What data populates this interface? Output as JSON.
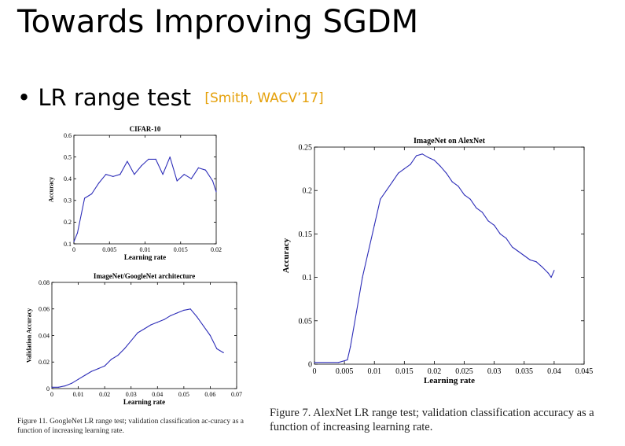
{
  "slide": {
    "title": "Towards Improving SGDM",
    "bullet_mark": "•",
    "bullet_text": "LR range test",
    "citation": "[Smith, WACV’17]"
  },
  "captions": {
    "left": "Figure 11. GoogleNet LR range test; validation classification ac-curacy as a function of increasing learning rate.",
    "right": "Figure 7. AlexNet LR range test; validation classification accuracy as a function of increasing learning rate."
  },
  "chart_data": [
    {
      "type": "line",
      "title": "CIFAR-10",
      "xlabel": "Learning rate",
      "ylabel": "Accuracy",
      "xlim": [
        0,
        0.02
      ],
      "ylim": [
        0.1,
        0.6
      ],
      "xticks": [
        "0",
        "0.005",
        "0.01",
        "0.015",
        "0.02"
      ],
      "yticks": [
        "0.1",
        "0.2",
        "0.3",
        "0.4",
        "0.5",
        "0.6"
      ],
      "grid": false,
      "color": "#2d2db8",
      "x": [
        0,
        0.0005,
        0.0015,
        0.0025,
        0.0035,
        0.0045,
        0.0055,
        0.0065,
        0.0075,
        0.0085,
        0.0095,
        0.0105,
        0.0115,
        0.0125,
        0.0135,
        0.0145,
        0.0155,
        0.0165,
        0.0175,
        0.0185,
        0.0195,
        0.02
      ],
      "y": [
        0.11,
        0.15,
        0.31,
        0.33,
        0.38,
        0.42,
        0.41,
        0.42,
        0.48,
        0.42,
        0.46,
        0.49,
        0.49,
        0.42,
        0.5,
        0.39,
        0.42,
        0.4,
        0.45,
        0.44,
        0.39,
        0.34
      ]
    },
    {
      "type": "line",
      "title": "ImageNet/GoogleNet architecture",
      "xlabel": "Learning rate",
      "ylabel": "Validation Accuracy",
      "xlim": [
        0,
        0.07
      ],
      "ylim": [
        0,
        0.08
      ],
      "xticks": [
        "0",
        "0.01",
        "0.02",
        "0.03",
        "0.04",
        "0.05",
        "0.06",
        "0.07"
      ],
      "yticks": [
        "0",
        "0.02",
        "0.04",
        "0.06",
        "0.08"
      ],
      "grid": false,
      "color": "#2d2db8",
      "x": [
        0,
        0.0025,
        0.005,
        0.0075,
        0.01,
        0.0125,
        0.015,
        0.0175,
        0.02,
        0.0225,
        0.025,
        0.0275,
        0.03,
        0.0325,
        0.035,
        0.0375,
        0.04,
        0.0425,
        0.045,
        0.0475,
        0.05,
        0.0525,
        0.055,
        0.0575,
        0.06,
        0.0625,
        0.065
      ],
      "y": [
        0.001,
        0.001,
        0.002,
        0.004,
        0.007,
        0.01,
        0.013,
        0.015,
        0.017,
        0.022,
        0.025,
        0.03,
        0.036,
        0.042,
        0.045,
        0.048,
        0.05,
        0.052,
        0.055,
        0.057,
        0.059,
        0.06,
        0.054,
        0.047,
        0.04,
        0.03,
        0.027
      ]
    },
    {
      "type": "line",
      "title": "ImageNet on AlexNet",
      "xlabel": "Learning rate",
      "ylabel": "Accuracy",
      "xlim": [
        0,
        0.045
      ],
      "ylim": [
        0,
        0.25
      ],
      "xticks": [
        "0",
        "0.005",
        "0.01",
        "0.015",
        "0.02",
        "0.025",
        "0.03",
        "0.035",
        "0.04",
        "0.045"
      ],
      "yticks": [
        "0",
        "0.05",
        "0.1",
        "0.15",
        "0.2",
        "0.25"
      ],
      "grid": false,
      "color": "#2d2db8",
      "x": [
        0,
        0.004,
        0.0055,
        0.006,
        0.007,
        0.008,
        0.009,
        0.01,
        0.011,
        0.012,
        0.013,
        0.014,
        0.015,
        0.016,
        0.017,
        0.018,
        0.019,
        0.02,
        0.021,
        0.022,
        0.023,
        0.024,
        0.025,
        0.026,
        0.027,
        0.028,
        0.029,
        0.03,
        0.031,
        0.032,
        0.033,
        0.034,
        0.035,
        0.036,
        0.037,
        0.038,
        0.039,
        0.0395,
        0.04
      ],
      "y": [
        0.002,
        0.002,
        0.005,
        0.02,
        0.06,
        0.1,
        0.13,
        0.16,
        0.19,
        0.2,
        0.21,
        0.22,
        0.225,
        0.23,
        0.24,
        0.242,
        0.238,
        0.235,
        0.228,
        0.22,
        0.21,
        0.205,
        0.195,
        0.19,
        0.18,
        0.175,
        0.165,
        0.16,
        0.15,
        0.145,
        0.135,
        0.13,
        0.125,
        0.12,
        0.118,
        0.112,
        0.105,
        0.1,
        0.108
      ]
    }
  ]
}
